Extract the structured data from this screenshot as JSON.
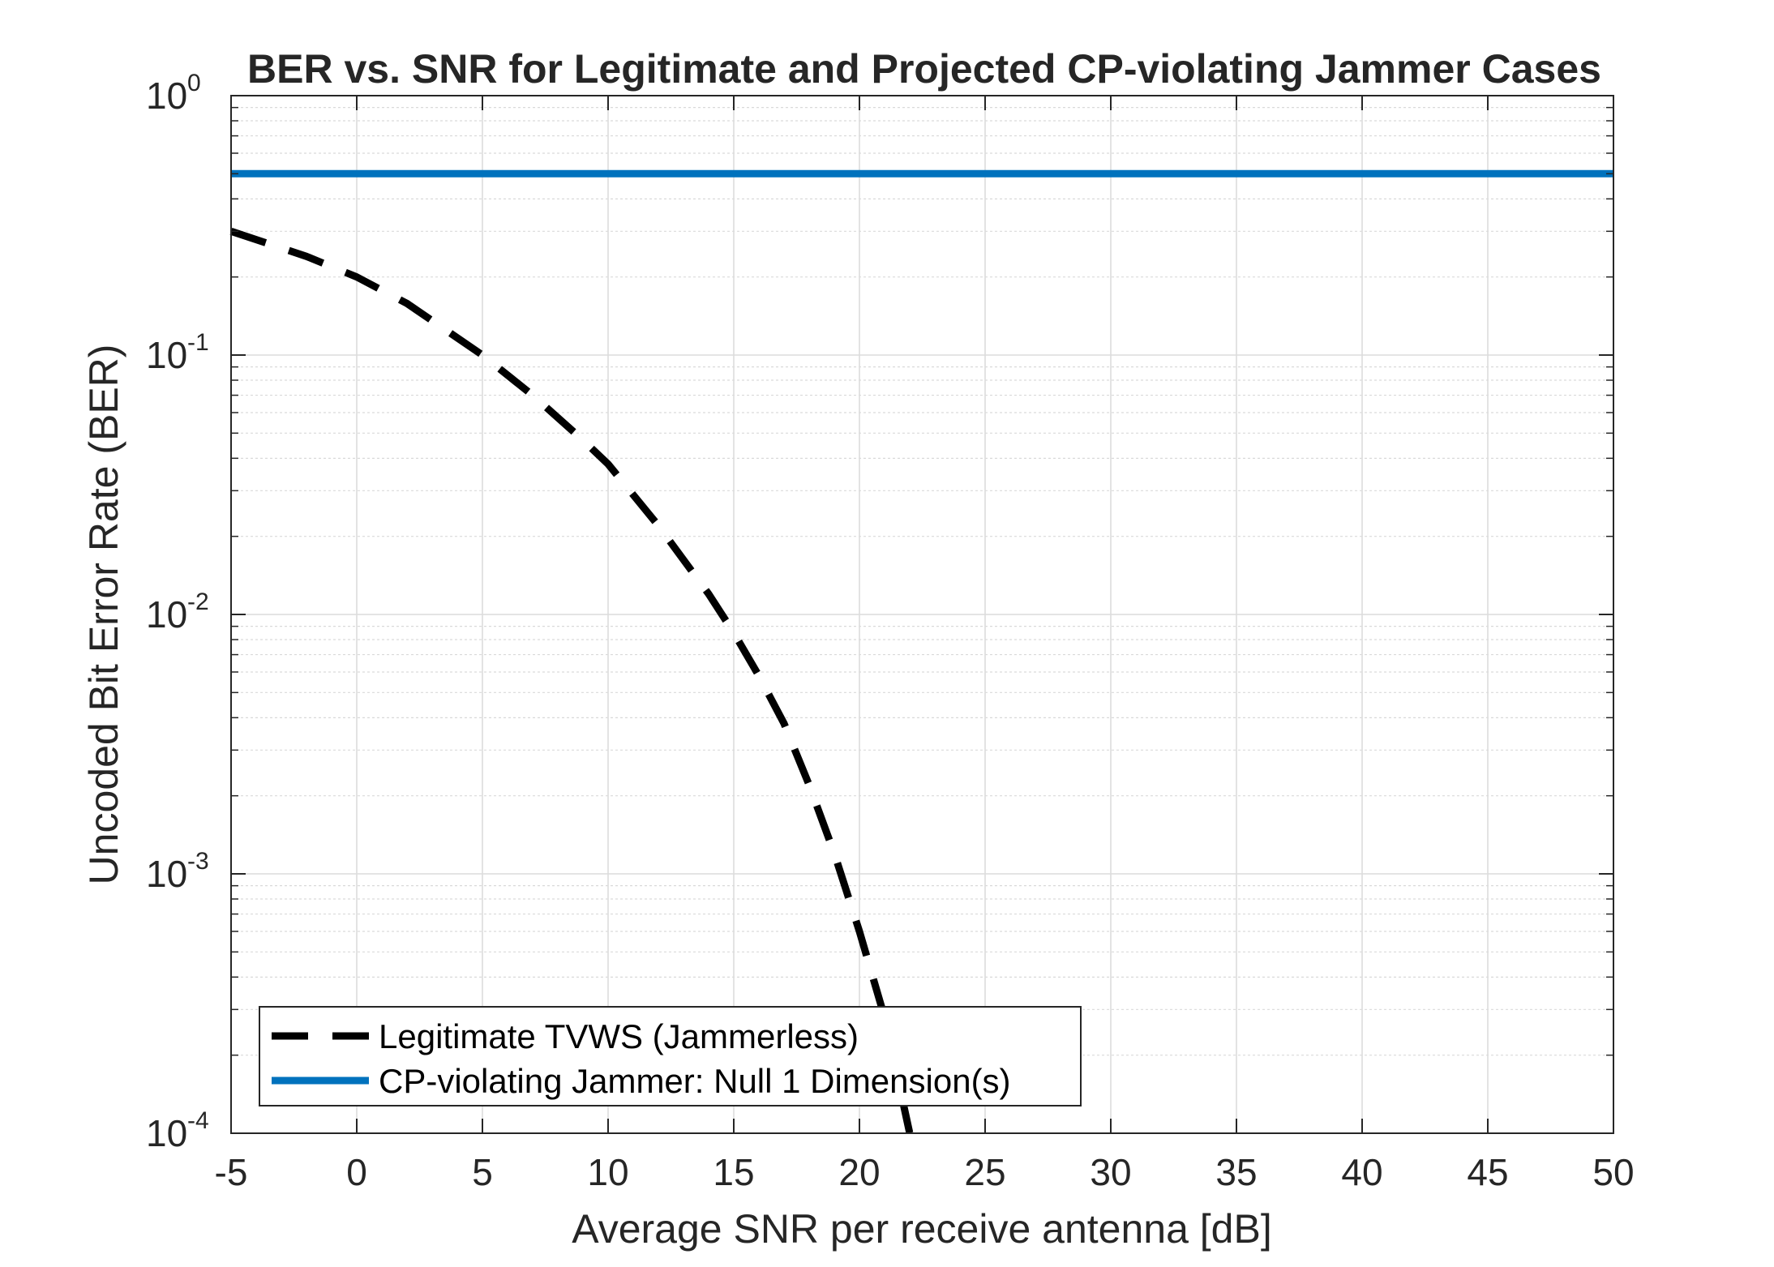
{
  "chart_data": {
    "type": "line",
    "title": "BER vs. SNR for Legitimate and Projected CP-violating Jammer Cases",
    "xlabel": "Average SNR per receive antenna [dB]",
    "ylabel": "Uncoded Bit Error Rate (BER)",
    "xlim": [
      -5,
      50
    ],
    "ylim": [
      0.0001,
      1
    ],
    "yscale": "log",
    "grid": true,
    "x_ticks": [
      "-5",
      "0",
      "5",
      "10",
      "15",
      "20",
      "25",
      "30",
      "35",
      "40",
      "45",
      "50"
    ],
    "y_ticks": [
      {
        "base": "10",
        "exp": "-4"
      },
      {
        "base": "10",
        "exp": "-3"
      },
      {
        "base": "10",
        "exp": "-2"
      },
      {
        "base": "10",
        "exp": "-1"
      },
      {
        "base": "10",
        "exp": "0"
      }
    ],
    "legend_position": "bottom-left",
    "series": [
      {
        "name": "Legitimate TVWS (Jammerless)",
        "color": "#000000",
        "style": "dashed",
        "x": [
          -5,
          -2,
          0,
          2,
          5,
          7,
          9,
          10,
          12,
          14,
          15,
          16,
          17,
          18,
          19,
          20,
          21,
          22
        ],
        "y": [
          0.3,
          0.24,
          0.2,
          0.158,
          0.1,
          0.07,
          0.047,
          0.038,
          0.022,
          0.012,
          0.0085,
          0.0058,
          0.0038,
          0.0022,
          0.0012,
          0.0006,
          0.00028,
          0.0001
        ]
      },
      {
        "name": "CP-violating Jammer: Null 1 Dimension(s)",
        "color": "#0072BD",
        "style": "solid",
        "x": [
          -5,
          0,
          5,
          10,
          15,
          20,
          25,
          30,
          35,
          40,
          45,
          50
        ],
        "y": [
          0.5,
          0.5,
          0.5,
          0.5,
          0.5,
          0.5,
          0.5,
          0.5,
          0.5,
          0.5,
          0.5,
          0.5
        ]
      }
    ]
  }
}
